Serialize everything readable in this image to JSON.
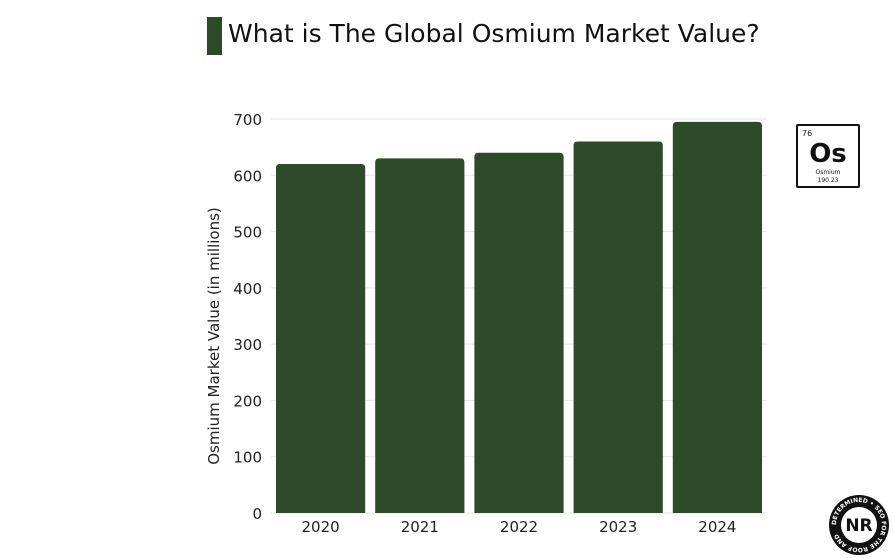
{
  "title": "What is The Global Osmium Market Value?",
  "colors": {
    "bar": "#2d4b28",
    "title_accent": "#2d4b28",
    "grid": "#e6e6e6",
    "axis_text": "#222222"
  },
  "element_tile": {
    "atomic_number": "76",
    "symbol": "Os",
    "name": "Osmium",
    "atomic_mass": "190.23"
  },
  "logo": {
    "initials": "NR",
    "ring_text": "DETERMINED • SEO FOR THE ROOF AND"
  },
  "chart_data": {
    "type": "bar",
    "title": "What is The Global Osmium Market Value?",
    "xlabel": "",
    "ylabel": "Osmium Market Value (in millions)",
    "categories": [
      "2020",
      "2021",
      "2022",
      "2023",
      "2024"
    ],
    "values": [
      620,
      630,
      640,
      660,
      695
    ],
    "ylim": [
      0,
      700
    ],
    "yticks": [
      0,
      100,
      200,
      300,
      400,
      500,
      600,
      700
    ],
    "grid": true,
    "legend": "none"
  }
}
